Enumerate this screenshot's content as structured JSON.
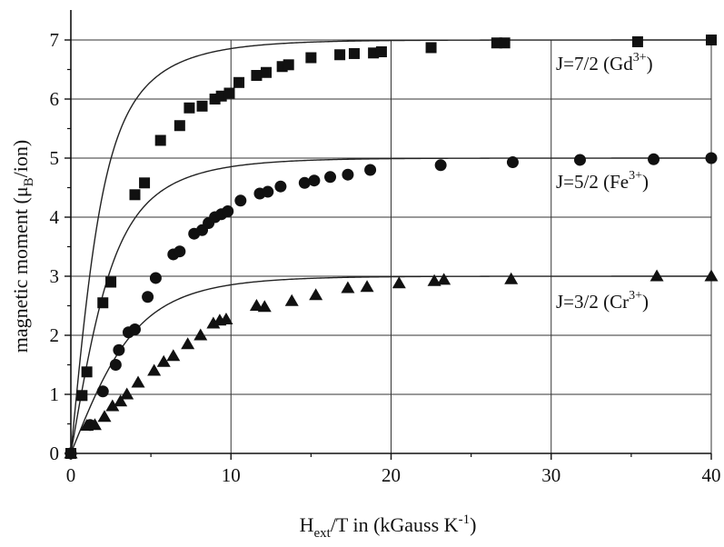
{
  "chart_data": {
    "type": "scatter",
    "title": "",
    "xlabel": {
      "main": "H",
      "sub": "ext",
      "rest": "/T in (kGauss K",
      "sup": "-1",
      "close": ")"
    },
    "ylabel": {
      "main": "magnetic moment (μ",
      "sub": "B",
      "rest": "/ion)"
    },
    "xlim": [
      0,
      40
    ],
    "ylim": [
      0,
      7
    ],
    "xticks": [
      0,
      10,
      20,
      30,
      40
    ],
    "yticks": [
      0,
      1,
      2,
      3,
      4,
      5,
      6,
      7
    ],
    "grid": true,
    "legend": "none",
    "series": [
      {
        "name": "J=7/2 (Gd3+)",
        "label": {
          "main": "J=7/2 (Gd",
          "sup": "3+",
          "close": ")"
        },
        "J": 3.5,
        "marker": "square",
        "color": "#111111",
        "x": [
          0,
          0.7,
          1.0,
          2.0,
          2.5,
          4.0,
          4.6,
          5.6,
          6.8,
          7.4,
          8.2,
          9.0,
          9.4,
          9.9,
          10.5,
          11.6,
          12.2,
          13.2,
          13.6,
          15.0,
          16.8,
          17.7,
          18.9,
          19.4,
          22.5,
          26.6,
          27.1,
          35.4,
          40
        ],
        "y": [
          0,
          0.98,
          1.38,
          2.55,
          2.9,
          4.38,
          4.58,
          5.3,
          5.55,
          5.85,
          5.88,
          6.0,
          6.05,
          6.1,
          6.28,
          6.4,
          6.45,
          6.55,
          6.58,
          6.7,
          6.75,
          6.77,
          6.78,
          6.8,
          6.87,
          6.95,
          6.95,
          6.97,
          7.0
        ]
      },
      {
        "name": "J=5/2 (Fe3+)",
        "label": {
          "main": "J=5/2 (Fe",
          "sup": "3+",
          "close": ")"
        },
        "J": 2.5,
        "marker": "circle",
        "color": "#111111",
        "x": [
          0,
          1.2,
          2.0,
          2.8,
          3.0,
          3.6,
          4.0,
          4.8,
          5.3,
          6.4,
          6.8,
          7.7,
          8.2,
          8.6,
          9.0,
          9.4,
          9.8,
          10.6,
          11.8,
          12.3,
          13.1,
          14.6,
          15.2,
          16.2,
          17.3,
          18.7,
          23.1,
          27.6,
          31.8,
          36.4,
          40
        ],
        "y": [
          0,
          0.48,
          1.05,
          1.5,
          1.75,
          2.05,
          2.1,
          2.65,
          2.97,
          3.37,
          3.42,
          3.72,
          3.78,
          3.9,
          4.0,
          4.05,
          4.1,
          4.28,
          4.4,
          4.43,
          4.52,
          4.58,
          4.62,
          4.68,
          4.72,
          4.8,
          4.88,
          4.93,
          4.97,
          4.98,
          5.0
        ]
      },
      {
        "name": "J=3/2 (Cr3+)",
        "label": {
          "main": "J=3/2 (Cr",
          "sup": "3+",
          "close": ")"
        },
        "J": 1.5,
        "marker": "triangle",
        "color": "#111111",
        "x": [
          0,
          1.0,
          1.5,
          2.1,
          2.6,
          3.1,
          3.5,
          4.2,
          5.2,
          5.8,
          6.4,
          7.3,
          8.1,
          8.9,
          9.3,
          9.7,
          11.6,
          12.1,
          13.8,
          15.3,
          17.3,
          18.5,
          20.5,
          22.7,
          23.3,
          27.5,
          36.6,
          40
        ],
        "y": [
          0,
          0.47,
          0.48,
          0.62,
          0.8,
          0.88,
          1.0,
          1.2,
          1.4,
          1.55,
          1.65,
          1.85,
          2.0,
          2.2,
          2.25,
          2.27,
          2.5,
          2.48,
          2.58,
          2.68,
          2.8,
          2.82,
          2.88,
          2.92,
          2.94,
          2.95,
          3.0,
          3.0
        ]
      }
    ]
  }
}
